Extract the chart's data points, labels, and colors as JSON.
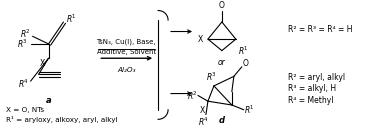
{
  "bg_color": "#ffffff",
  "fig_width": 3.78,
  "fig_height": 1.3,
  "dpi": 100,
  "reagent_line1": "TsN₃, Cu(I), Base,",
  "reagent_line2": "Additive, Solvent",
  "reagent_line3": "Al₂O₃",
  "r2r3r4_top": "R² = R³ = R⁴ = H",
  "r2_bot": "R² = aryl, alkyl",
  "r3_bot": "R³ = alkyl, H",
  "r4_bot": "R⁴ = Methyl",
  "xeq_top": "X = O, NTs",
  "r1eq": "R¹ = aryloxy, alkoxy, aryl, alkyl",
  "font_size": 5.5
}
